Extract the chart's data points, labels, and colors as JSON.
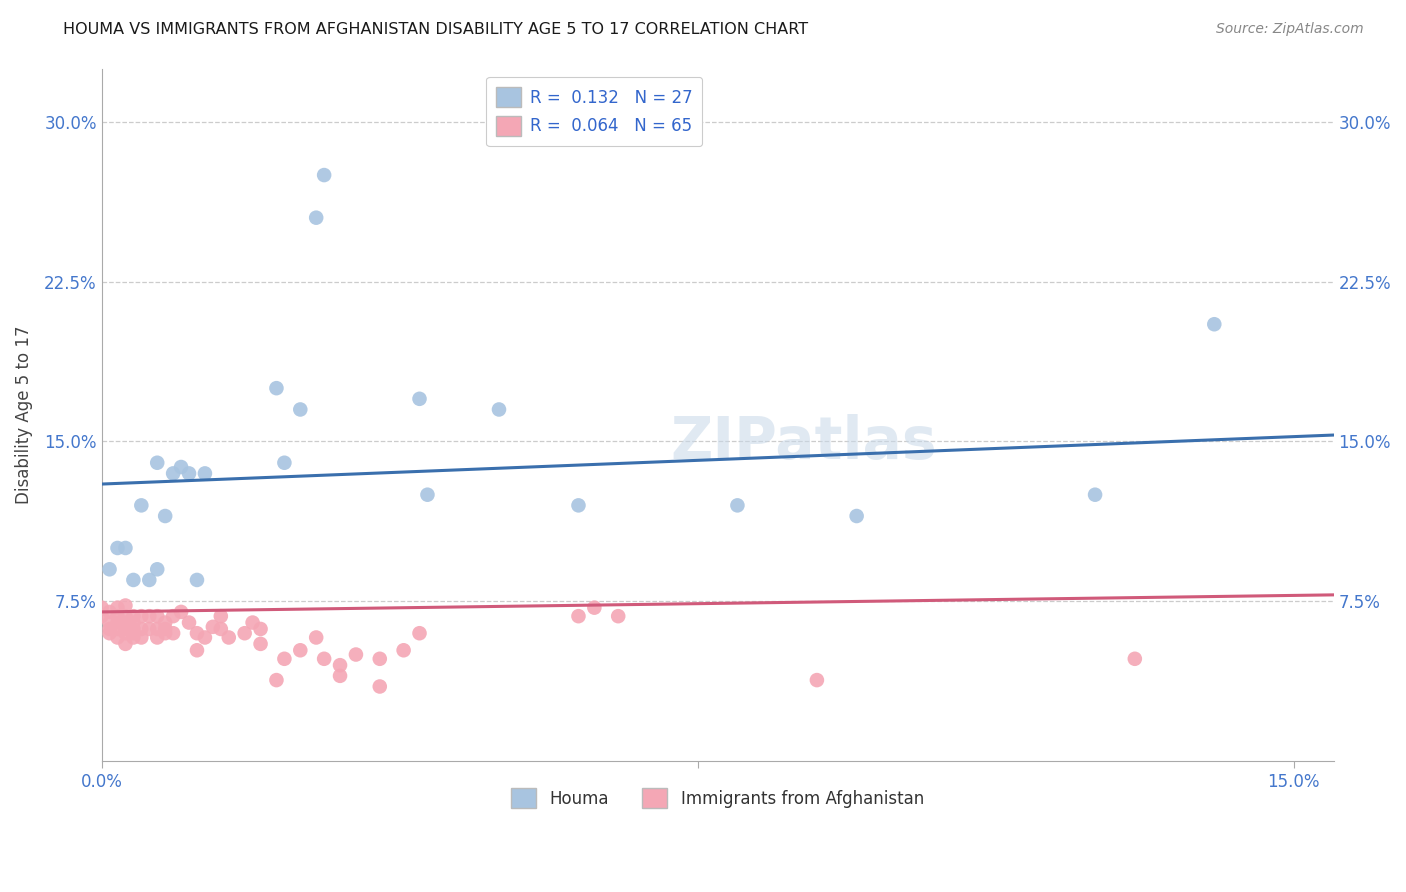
{
  "title": "HOUMA VS IMMIGRANTS FROM AFGHANISTAN DISABILITY AGE 5 TO 17 CORRELATION CHART",
  "source": "Source: ZipAtlas.com",
  "ylabel": "Disability Age 5 to 17",
  "ylim": [
    0.0,
    0.325
  ],
  "xlim": [
    0.0,
    0.155
  ],
  "watermark": "ZIPatlas",
  "houma_R": 0.132,
  "houma_N": 27,
  "houma_color": "#a8c4e0",
  "houma_line_color": "#3a6fad",
  "afghan_R": 0.064,
  "afghan_N": 65,
  "afghan_color": "#f4a7b5",
  "afghan_line_color": "#d05a7a",
  "houma_line_x0": 0.0,
  "houma_line_y0": 0.13,
  "houma_line_x1": 0.155,
  "houma_line_y1": 0.153,
  "afghan_line_x0": 0.0,
  "afghan_line_y0": 0.07,
  "afghan_line_x1": 0.155,
  "afghan_line_y1": 0.078,
  "houma_x": [
    0.001,
    0.002,
    0.003,
    0.004,
    0.005,
    0.006,
    0.007,
    0.007,
    0.008,
    0.009,
    0.01,
    0.011,
    0.012,
    0.013,
    0.022,
    0.023,
    0.025,
    0.027,
    0.028,
    0.04,
    0.041,
    0.05,
    0.06,
    0.08,
    0.095,
    0.125,
    0.14
  ],
  "houma_y": [
    0.09,
    0.1,
    0.1,
    0.085,
    0.12,
    0.085,
    0.09,
    0.14,
    0.115,
    0.135,
    0.138,
    0.135,
    0.085,
    0.135,
    0.175,
    0.14,
    0.165,
    0.255,
    0.275,
    0.17,
    0.125,
    0.165,
    0.12,
    0.12,
    0.115,
    0.125,
    0.205
  ],
  "afghan_x": [
    0.0,
    0.0,
    0.001,
    0.001,
    0.001,
    0.001,
    0.002,
    0.002,
    0.002,
    0.002,
    0.002,
    0.003,
    0.003,
    0.003,
    0.003,
    0.003,
    0.003,
    0.004,
    0.004,
    0.004,
    0.004,
    0.004,
    0.005,
    0.005,
    0.005,
    0.006,
    0.006,
    0.007,
    0.007,
    0.007,
    0.008,
    0.008,
    0.008,
    0.009,
    0.009,
    0.01,
    0.011,
    0.012,
    0.012,
    0.013,
    0.014,
    0.015,
    0.015,
    0.016,
    0.018,
    0.019,
    0.02,
    0.02,
    0.022,
    0.023,
    0.025,
    0.027,
    0.028,
    0.03,
    0.03,
    0.032,
    0.035,
    0.035,
    0.038,
    0.04,
    0.06,
    0.062,
    0.065,
    0.09,
    0.13
  ],
  "afghan_y": [
    0.068,
    0.072,
    0.06,
    0.062,
    0.065,
    0.07,
    0.058,
    0.062,
    0.065,
    0.068,
    0.072,
    0.055,
    0.06,
    0.062,
    0.065,
    0.068,
    0.073,
    0.058,
    0.06,
    0.062,
    0.065,
    0.068,
    0.058,
    0.062,
    0.068,
    0.062,
    0.068,
    0.058,
    0.062,
    0.068,
    0.06,
    0.062,
    0.065,
    0.06,
    0.068,
    0.07,
    0.065,
    0.052,
    0.06,
    0.058,
    0.063,
    0.062,
    0.068,
    0.058,
    0.06,
    0.065,
    0.055,
    0.062,
    0.038,
    0.048,
    0.052,
    0.058,
    0.048,
    0.04,
    0.045,
    0.05,
    0.035,
    0.048,
    0.052,
    0.06,
    0.068,
    0.072,
    0.068,
    0.038,
    0.048
  ],
  "background_color": "#ffffff",
  "grid_color": "#cccccc",
  "title_color": "#1a1a1a",
  "tick_label_color": "#4477cc"
}
